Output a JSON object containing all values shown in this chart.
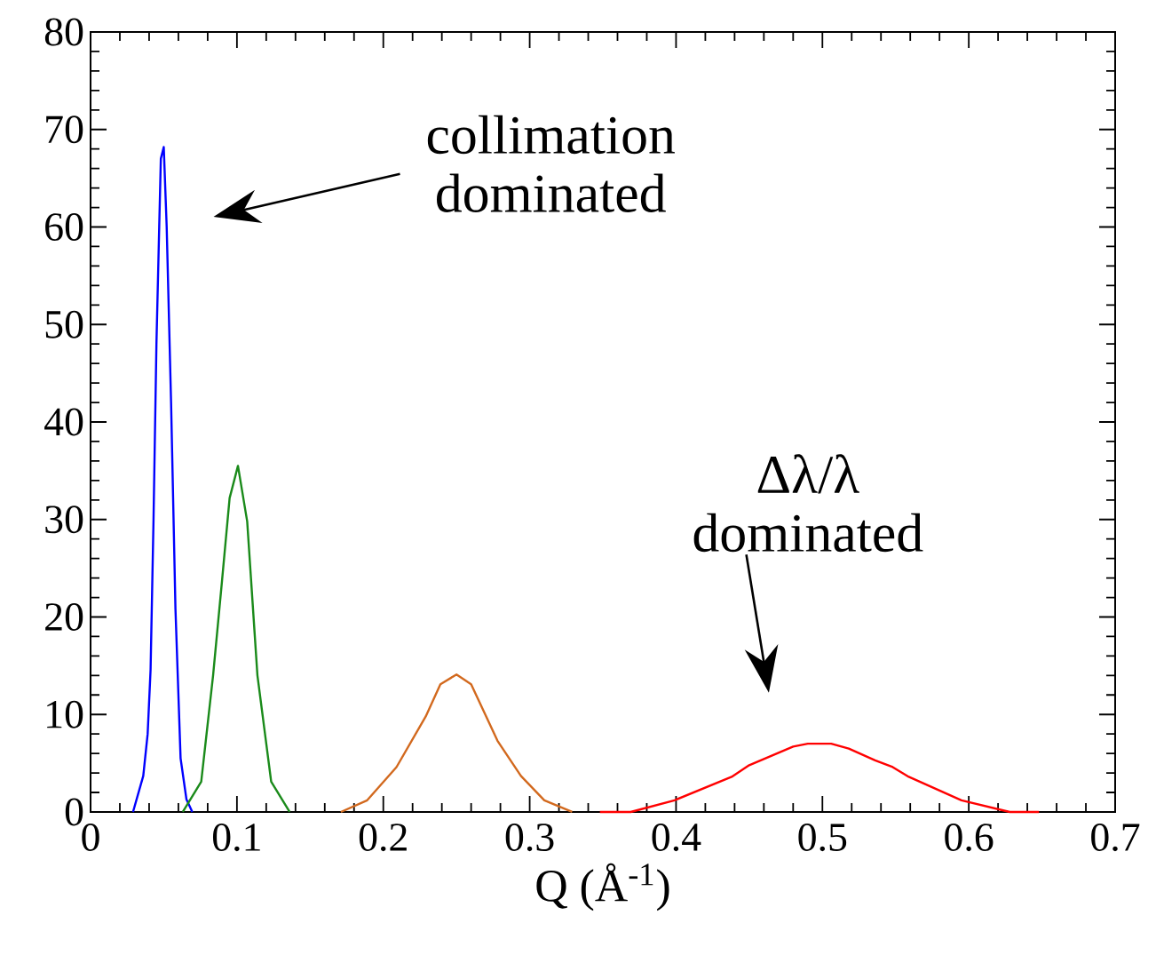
{
  "chart_data": {
    "type": "line",
    "xlabel": "Q (Å$^{-1}$)",
    "xlim": [
      0,
      0.7
    ],
    "ylim": [
      0,
      80
    ],
    "xticks": [
      0,
      0.1,
      0.2,
      0.3,
      0.4,
      0.5,
      0.6,
      0.7
    ],
    "yticks": [
      0,
      10,
      20,
      30,
      40,
      50,
      60,
      70,
      80
    ],
    "marker": "none",
    "line_style": "solid",
    "series": [
      {
        "color": "#0000ff",
        "x": [
          0.029,
          0.036,
          0.039,
          0.041,
          0.043,
          0.045,
          0.048,
          0.05,
          0.052,
          0.055,
          0.058,
          0.0615,
          0.0655,
          0.0695
        ],
        "values": [
          0,
          3.7,
          8,
          14.6,
          29.9,
          48,
          67,
          68.2,
          60,
          42,
          20.8,
          5.5,
          1.3,
          0
        ]
      },
      {
        "color": "#1a8a1a",
        "x": [
          0.063,
          0.0756,
          0.0837,
          0.0898,
          0.095,
          0.1007,
          0.107,
          0.114,
          0.1234,
          0.136
        ],
        "values": [
          0,
          3.1,
          14,
          23.7,
          32.2,
          35.5,
          29.8,
          14,
          3.1,
          0
        ]
      },
      {
        "color": "#d2691e",
        "x": [
          0.171,
          0.189,
          0.209,
          0.229,
          0.239,
          0.25,
          0.26,
          0.278,
          0.294,
          0.31,
          0.329
        ],
        "values": [
          0,
          1.2,
          4.6,
          9.8,
          13.1,
          14.1,
          13.1,
          7.3,
          3.7,
          1.2,
          0
        ]
      },
      {
        "color": "#ff0000",
        "x": [
          0.348,
          0.369,
          0.399,
          0.438,
          0.45,
          0.48,
          0.49,
          0.506,
          0.518,
          0.536,
          0.548,
          0.559,
          0.595,
          0.628,
          0.648
        ],
        "values": [
          0,
          0,
          1.2,
          3.6,
          4.8,
          6.7,
          7.0,
          7.0,
          6.5,
          5.3,
          4.6,
          3.6,
          1.2,
          0,
          0
        ]
      }
    ],
    "annotations": [
      "collimation dominated",
      "Δλ/λ dominated"
    ]
  }
}
